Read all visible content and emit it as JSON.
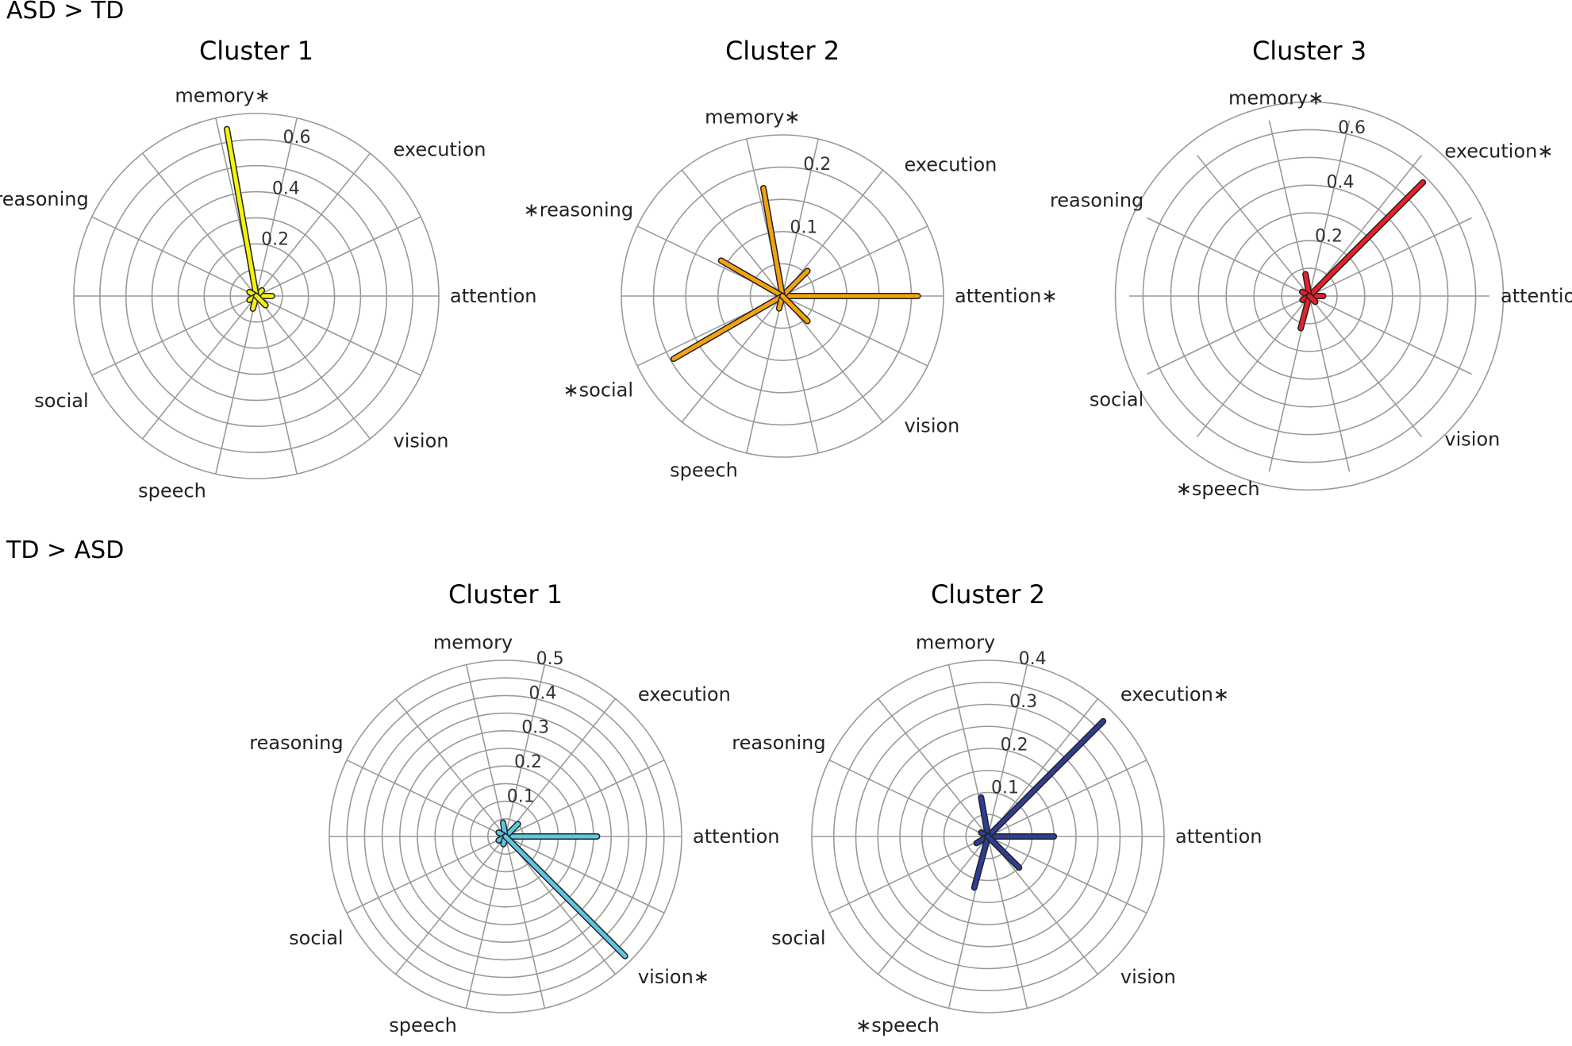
{
  "sections": [
    {
      "label": "ASD > TD"
    },
    {
      "label": "TD > ASD"
    }
  ],
  "categories": [
    "attention",
    "execution",
    "memory",
    "reasoning",
    "social",
    "speech",
    "vision"
  ],
  "chart_data": [
    {
      "type": "radar",
      "section": 0,
      "title": "Cluster 1",
      "color": "#f5f20e",
      "rmax": 0.7,
      "ticks": [
        0.2,
        0.4,
        0.6
      ],
      "category_labels": [
        "attention",
        "execution",
        "memory∗",
        "reasoning",
        "social",
        "speech",
        "vision"
      ],
      "values": [
        0.06,
        0.03,
        0.65,
        0.03,
        0.02,
        0.05,
        0.05
      ]
    },
    {
      "type": "radar",
      "section": 0,
      "title": "Cluster 2",
      "color": "#f5a20f",
      "rmax": 0.25,
      "ticks": [
        0.1,
        0.2
      ],
      "category_labels": [
        "attention∗",
        "execution",
        "memory∗",
        "∗reasoning",
        "∗social",
        "speech",
        "vision"
      ],
      "values": [
        0.21,
        0.055,
        0.17,
        0.11,
        0.195,
        0.02,
        0.055
      ]
    },
    {
      "type": "radar",
      "section": 0,
      "title": "Cluster 3",
      "color": "#e8202a",
      "rmax": 0.65,
      "ticks": [
        0.2,
        0.4,
        0.6
      ],
      "category_labels": [
        "attention",
        "execution∗",
        "memory∗",
        "reasoning",
        "social",
        "∗speech",
        "vision"
      ],
      "values": [
        0.05,
        0.58,
        0.08,
        0.03,
        0.02,
        0.12,
        0.03
      ]
    },
    {
      "type": "radar",
      "section": 1,
      "title": "Cluster 1",
      "color": "#5bc8e0",
      "rmax": 0.5,
      "ticks": [
        0.1,
        0.2,
        0.3,
        0.4,
        0.5
      ],
      "category_labels": [
        "attention",
        "execution",
        "memory",
        "reasoning",
        "social",
        "speech",
        "vision∗"
      ],
      "values": [
        0.26,
        0.05,
        0.04,
        0.01,
        0.01,
        0.02,
        0.48
      ]
    },
    {
      "type": "radar",
      "section": 1,
      "title": "Cluster 2",
      "color": "#2c3e95",
      "rmax": 0.4,
      "ticks": [
        0.1,
        0.2,
        0.3,
        0.4
      ],
      "category_labels": [
        "attention",
        "execution∗",
        "memory",
        "reasoning",
        "social",
        "∗speech",
        "vision"
      ],
      "values": [
        0.15,
        0.37,
        0.09,
        0.01,
        0.03,
        0.12,
        0.1
      ]
    }
  ]
}
